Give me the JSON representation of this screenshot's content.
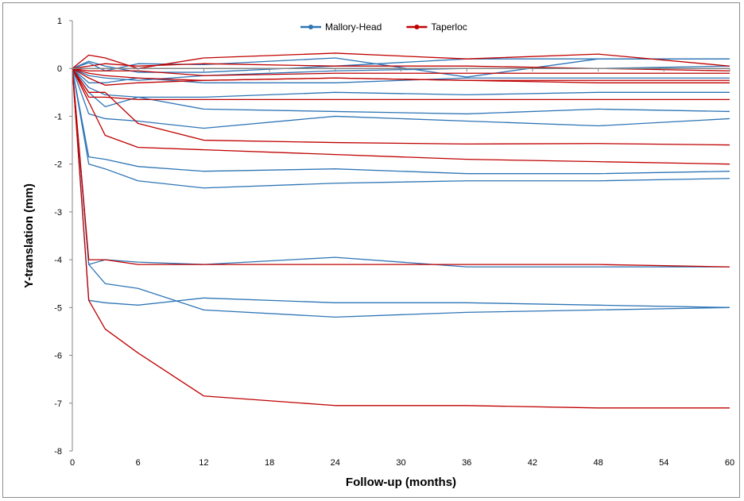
{
  "chart_data": {
    "type": "line",
    "title": "",
    "xlabel": "Follow-up (months)",
    "ylabel": "Y-translation  (mm)",
    "xlim": [
      0,
      60
    ],
    "ylim": [
      -8,
      1
    ],
    "xticks": [
      "0",
      "6",
      "12",
      "18",
      "24",
      "30",
      "36",
      "42",
      "48",
      "54",
      "60"
    ],
    "yticks": [
      "1",
      "0",
      "-1",
      "-2",
      "-3",
      "-4",
      "-5",
      "-6",
      "-7",
      "-8"
    ],
    "grid": false,
    "legend_position": "top-center",
    "x": [
      0,
      1.5,
      3,
      6,
      12,
      24,
      36,
      48,
      60
    ],
    "colors": {
      "Mallory-Head": "#2e75b6",
      "Taperloc": "#c00000"
    },
    "series": [
      {
        "name": "Mallory-Head",
        "values": [
          0,
          0.12,
          -0.05,
          0.1,
          0.08,
          0.22,
          -0.18,
          0.2,
          0.2
        ]
      },
      {
        "name": "Mallory-Head",
        "values": [
          0,
          0.15,
          0.05,
          -0.08,
          -0.08,
          0.05,
          0.2,
          0.2,
          0.2
        ]
      },
      {
        "name": "Mallory-Head",
        "values": [
          0,
          -0.15,
          -0.2,
          -0.25,
          -0.15,
          -0.05,
          0.0,
          0.0,
          0.05
        ]
      },
      {
        "name": "Mallory-Head",
        "values": [
          0,
          -0.3,
          -0.3,
          -0.2,
          -0.3,
          -0.3,
          -0.2,
          -0.2,
          -0.2
        ]
      },
      {
        "name": "Mallory-Head",
        "values": [
          0,
          -0.4,
          -0.55,
          -0.6,
          -0.6,
          -0.5,
          -0.55,
          -0.5,
          -0.5
        ]
      },
      {
        "name": "Mallory-Head",
        "values": [
          0,
          -0.5,
          -0.8,
          -0.6,
          -0.85,
          -0.9,
          -0.95,
          -0.85,
          -0.9
        ]
      },
      {
        "name": "Mallory-Head",
        "values": [
          0,
          -0.95,
          -1.05,
          -1.1,
          -1.25,
          -1.0,
          -1.1,
          -1.2,
          -1.05
        ]
      },
      {
        "name": "Mallory-Head",
        "values": [
          0,
          -1.85,
          -1.9,
          -2.05,
          -2.15,
          -2.1,
          -2.2,
          -2.2,
          -2.15
        ]
      },
      {
        "name": "Mallory-Head",
        "values": [
          0,
          -2.0,
          -2.1,
          -2.35,
          -2.5,
          -2.4,
          -2.35,
          -2.35,
          -2.3
        ]
      },
      {
        "name": "Mallory-Head",
        "values": [
          0,
          -4.1,
          -4.0,
          -4.05,
          -4.1,
          -3.95,
          -4.15,
          -4.15,
          -4.15
        ]
      },
      {
        "name": "Mallory-Head",
        "values": [
          0,
          -4.1,
          -4.5,
          -4.6,
          -5.05,
          -5.2,
          -5.1,
          -5.05,
          -5.0
        ]
      },
      {
        "name": "Mallory-Head",
        "values": [
          0,
          -4.85,
          -4.9,
          -4.95,
          -4.8,
          -4.9,
          -4.9,
          -4.95,
          -5.0
        ]
      },
      {
        "name": "Taperloc",
        "values": [
          0,
          0.28,
          0.22,
          0.0,
          0.22,
          0.32,
          0.2,
          0.3,
          0.05
        ]
      },
      {
        "name": "Taperloc",
        "values": [
          0,
          0.05,
          0.1,
          0.05,
          0.1,
          0.05,
          0.05,
          0.0,
          -0.05
        ]
      },
      {
        "name": "Taperloc",
        "values": [
          0,
          -0.05,
          -0.05,
          -0.05,
          -0.15,
          -0.1,
          -0.1,
          -0.1,
          -0.1
        ]
      },
      {
        "name": "Taperloc",
        "values": [
          0,
          -0.1,
          -0.15,
          -0.2,
          -0.25,
          -0.2,
          -0.25,
          -0.25,
          -0.25
        ]
      },
      {
        "name": "Taperloc",
        "values": [
          0,
          -0.2,
          -0.35,
          -0.3,
          -0.25,
          -0.2,
          -0.25,
          -0.3,
          -0.3
        ]
      },
      {
        "name": "Taperloc",
        "values": [
          0,
          -0.6,
          -0.6,
          -0.65,
          -0.65,
          -0.65,
          -0.65,
          -0.65,
          -0.65
        ]
      },
      {
        "name": "Taperloc",
        "values": [
          0,
          -0.5,
          -0.5,
          -1.15,
          -1.5,
          -1.55,
          -1.58,
          -1.57,
          -1.6
        ]
      },
      {
        "name": "Taperloc",
        "values": [
          0,
          -0.7,
          -1.4,
          -1.65,
          -1.7,
          -1.8,
          -1.9,
          -1.95,
          -2.0
        ]
      },
      {
        "name": "Taperloc",
        "values": [
          0,
          -4.0,
          -4.0,
          -4.1,
          -4.1,
          -4.1,
          -4.1,
          -4.1,
          -4.15
        ]
      },
      {
        "name": "Taperloc",
        "values": [
          0,
          -4.85,
          -5.45,
          -5.95,
          -6.85,
          -7.05,
          -7.05,
          -7.1,
          -7.1
        ]
      }
    ]
  }
}
